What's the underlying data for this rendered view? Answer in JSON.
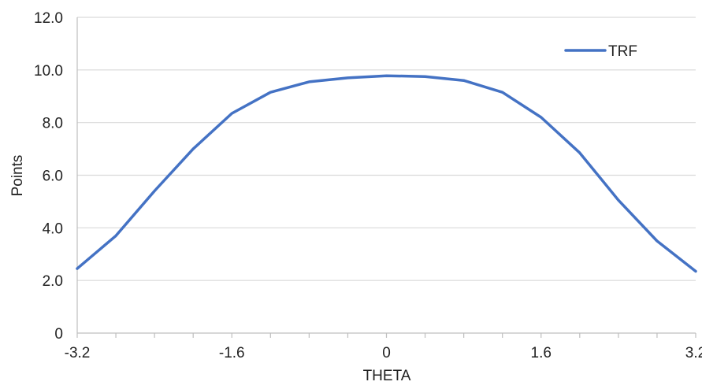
{
  "chart_data": {
    "type": "line",
    "title": "",
    "xlabel": "THETA",
    "ylabel": "Points",
    "xlim": [
      -3.2,
      3.2
    ],
    "ylim": [
      0,
      12
    ],
    "x_ticks": [
      {
        "value": -3.2,
        "label": "-3.2"
      },
      {
        "value": -1.6,
        "label": "-1.6"
      },
      {
        "value": 0,
        "label": "0"
      },
      {
        "value": 1.6,
        "label": "1.6"
      },
      {
        "value": 3.2,
        "label": "3.2"
      }
    ],
    "x_minor_tick_step": 0.4,
    "y_ticks": [
      {
        "value": 0,
        "label": "0"
      },
      {
        "value": 2,
        "label": "2.0"
      },
      {
        "value": 4,
        "label": "4.0"
      },
      {
        "value": 6,
        "label": "6.0"
      },
      {
        "value": 8,
        "label": "8.0"
      },
      {
        "value": 10,
        "label": "10.0"
      },
      {
        "value": 12,
        "label": "12.0"
      }
    ],
    "grid": "horizontal",
    "legend_position": "top-right",
    "series": [
      {
        "name": "TRF",
        "color": "#4472C4",
        "x": [
          -3.2,
          -2.8,
          -2.4,
          -2.0,
          -1.6,
          -1.2,
          -0.8,
          -0.4,
          0.0,
          0.4,
          0.8,
          1.2,
          1.6,
          2.0,
          2.4,
          2.8,
          3.2
        ],
        "y": [
          2.45,
          3.7,
          5.4,
          7.0,
          8.35,
          9.15,
          9.55,
          9.7,
          9.78,
          9.75,
          9.6,
          9.15,
          8.2,
          6.85,
          5.05,
          3.5,
          2.35
        ]
      }
    ]
  }
}
